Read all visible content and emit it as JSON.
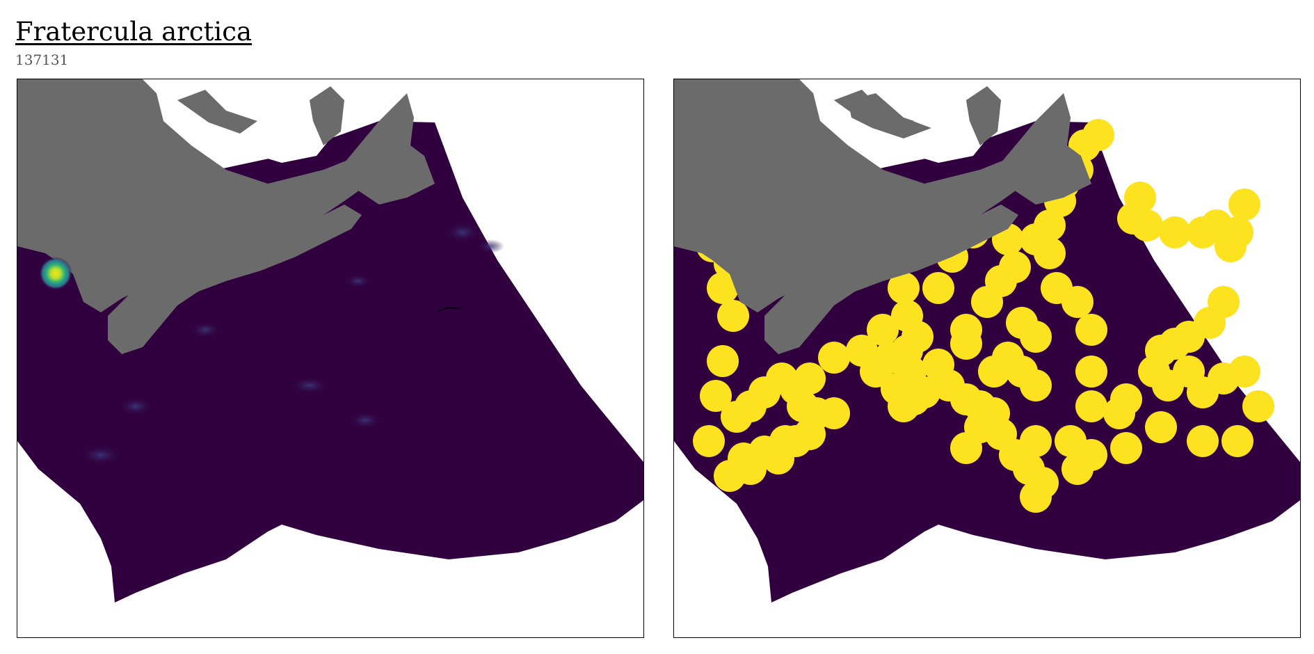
{
  "header": {
    "title": "Fratercula arctica",
    "subtitle": "137131"
  },
  "colors": {
    "land": "#6b6b6b",
    "ocean_fill": "#31013f",
    "presence": "#fde21f",
    "hotspot_core": "#f2e51a",
    "hotspot_mid": "#29ae80",
    "hotspot_outer": "#2e6f8e"
  },
  "panels": [
    {
      "id": "predicted-density-map",
      "style": "continuous-viridis"
    },
    {
      "id": "occurrence-buffer-map",
      "style": "binary-presence"
    }
  ]
}
